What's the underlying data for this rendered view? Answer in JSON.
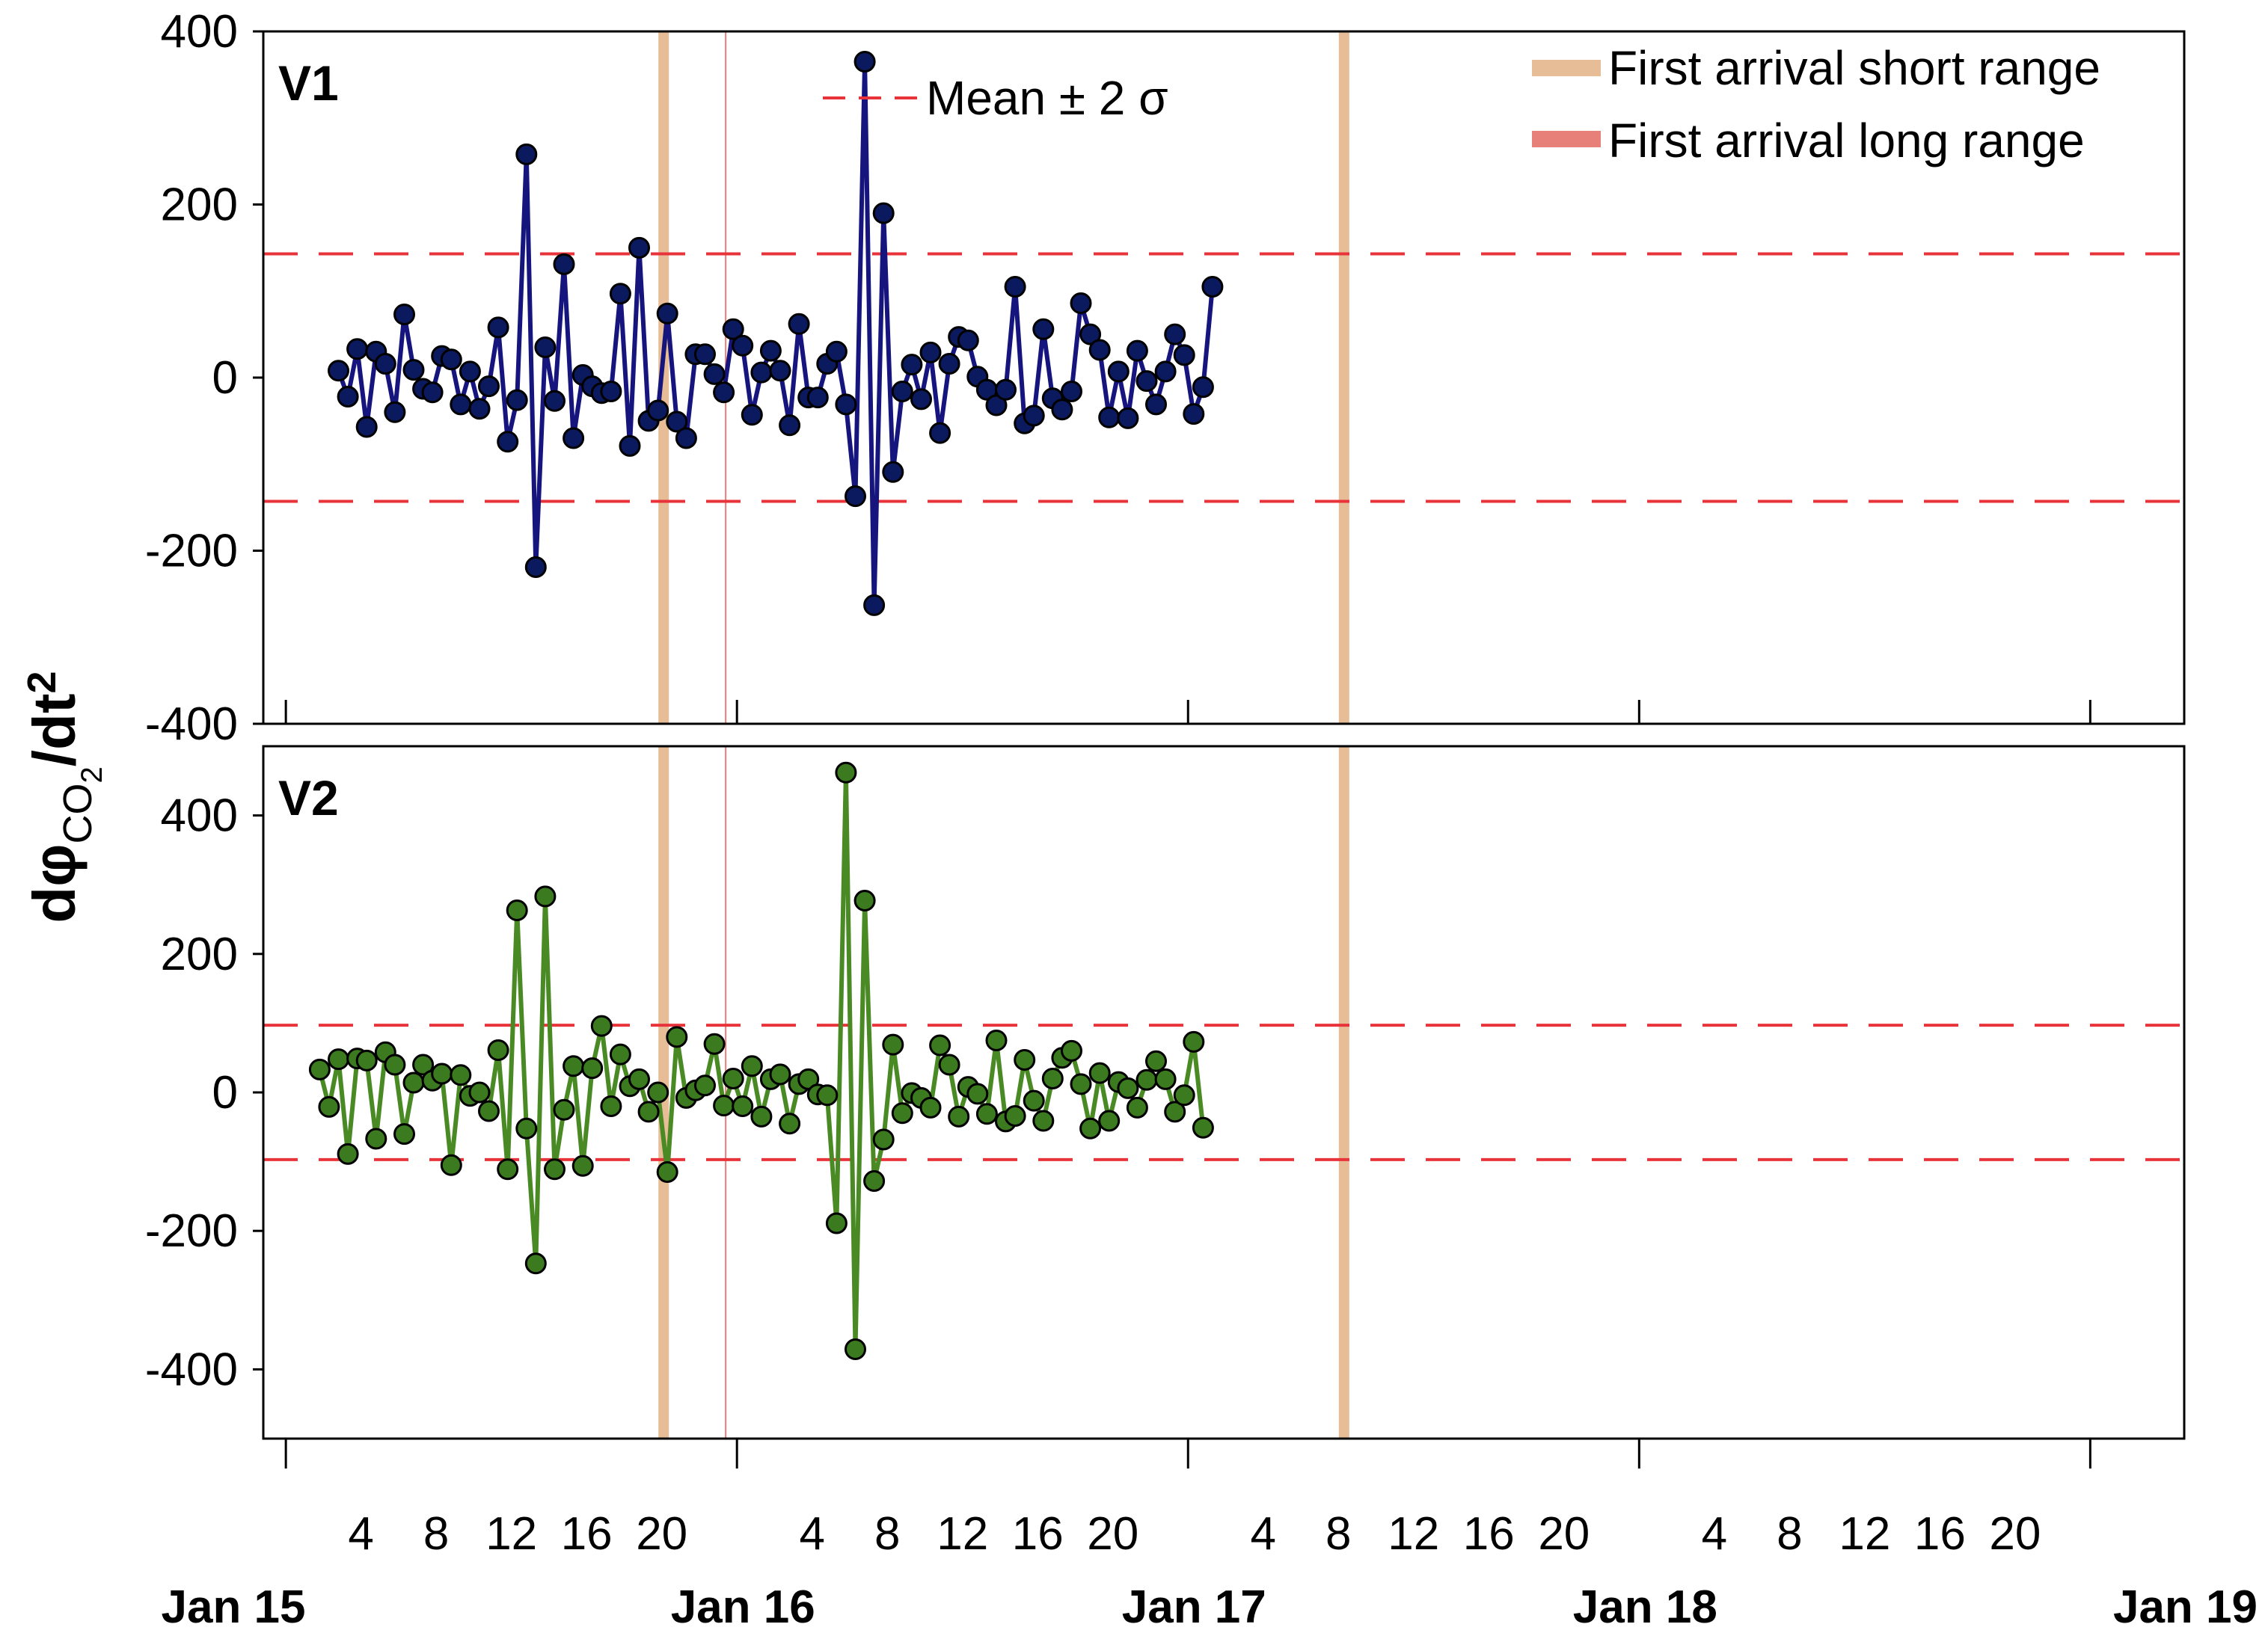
{
  "chart_data": {
    "type": "line",
    "ylabel": {
      "prefix": "dφ",
      "sub": "CO",
      "subsub": "2",
      "suffix": "/dt",
      "sup": "2"
    },
    "x_unit": "hours since Jan 15 00:00",
    "x_step_hours": 0.5,
    "xlim": [
      -1.2,
      101
    ],
    "hour_ticks": [
      {
        "x": 4,
        "label": "4"
      },
      {
        "x": 8,
        "label": "8"
      },
      {
        "x": 12,
        "label": "12"
      },
      {
        "x": 16,
        "label": "16"
      },
      {
        "x": 20,
        "label": "20"
      },
      {
        "x": 28,
        "label": "4"
      },
      {
        "x": 32,
        "label": "8"
      },
      {
        "x": 36,
        "label": "12"
      },
      {
        "x": 40,
        "label": "16"
      },
      {
        "x": 44,
        "label": "20"
      },
      {
        "x": 52,
        "label": "4"
      },
      {
        "x": 56,
        "label": "8"
      },
      {
        "x": 60,
        "label": "12"
      },
      {
        "x": 64,
        "label": "16"
      },
      {
        "x": 68,
        "label": "20"
      },
      {
        "x": 76,
        "label": "4"
      },
      {
        "x": 80,
        "label": "8"
      },
      {
        "x": 84,
        "label": "12"
      },
      {
        "x": 88,
        "label": "16"
      },
      {
        "x": 92,
        "label": "20"
      }
    ],
    "date_ticks": [
      {
        "x": 0,
        "label": "Jan 15"
      },
      {
        "x": 24,
        "label": "Jan 16"
      },
      {
        "x": 48,
        "label": "Jan 17"
      },
      {
        "x": 72,
        "label": "Jan 18"
      },
      {
        "x": 96,
        "label": "Jan 19"
      }
    ],
    "events": [
      {
        "name": "First arrival short range",
        "x": 20.1,
        "color": "#e6bd96",
        "width": 14
      },
      {
        "name": "First arrival long range",
        "x": 23.4,
        "color": "#e8807a",
        "width": 2
      },
      {
        "name": "First arrival short range",
        "x": 56.3,
        "color": "#e6bd96",
        "width": 14
      }
    ],
    "legend": {
      "mean_label": "Mean ± 2 σ",
      "short_label": "First arrival short range",
      "long_label": "First arrival long range",
      "mean_color": "#e8333a",
      "short_color": "#e6bd96",
      "long_color": "#e8807a"
    },
    "panels": [
      {
        "label": "V1",
        "ylim": [
          -400,
          400
        ],
        "yticks": [
          400,
          200,
          0,
          -200,
          -400
        ],
        "threshold": 143,
        "line_color": "#15157d",
        "marker_color": "#0b1a5e",
        "x_start": 2.8,
        "values": [
          8,
          -22,
          33,
          -57,
          30,
          16,
          -40,
          73,
          9,
          -13,
          -17,
          25,
          21,
          -31,
          7,
          -36,
          -10,
          58,
          -74,
          -26,
          258,
          -219,
          35,
          -27,
          131,
          -70,
          3,
          -10,
          -18,
          -16,
          97,
          -79,
          150,
          -50,
          -38,
          74,
          -51,
          -70,
          27,
          27,
          4,
          -17,
          56,
          37,
          -43,
          6,
          31,
          8,
          -55,
          62,
          -23,
          -23,
          16,
          30,
          -31,
          -137,
          365,
          -263,
          190,
          -109,
          -16,
          15,
          -25,
          29,
          -64,
          16,
          47,
          43,
          1,
          -14,
          -32,
          -14,
          105,
          -53,
          -44,
          56,
          -24,
          -37,
          -16,
          86,
          50,
          32,
          -46,
          7,
          -47,
          31,
          -4,
          -31,
          7,
          50,
          26,
          -42,
          -11,
          105
        ]
      },
      {
        "label": "V2",
        "ylim": [
          -500,
          500
        ],
        "yticks": [
          400,
          200,
          0,
          -200,
          -400
        ],
        "threshold": 97,
        "line_color": "#4a8a24",
        "marker_color": "#3b7a1f",
        "x_start": 1.8,
        "values": [
          33,
          -21,
          48,
          -89,
          49,
          46,
          -67,
          58,
          40,
          -60,
          14,
          40,
          17,
          27,
          -105,
          25,
          -5,
          0,
          -27,
          61,
          -111,
          263,
          -52,
          -247,
          283,
          -111,
          -25,
          38,
          -106,
          35,
          96,
          -20,
          55,
          9,
          19,
          -28,
          0,
          -115,
          80,
          -8,
          3,
          10,
          70,
          -19,
          20,
          -20,
          38,
          -35,
          19,
          26,
          -45,
          12,
          19,
          -3,
          -4,
          -189,
          462,
          -371,
          277,
          -128,
          -68,
          69,
          -30,
          -1,
          -8,
          -22,
          68,
          40,
          -35,
          8,
          -2,
          -31,
          75,
          -42,
          -34,
          47,
          -12,
          -41,
          20,
          50,
          60,
          12,
          -52,
          28,
          -41,
          15,
          6,
          -22,
          18,
          45,
          19,
          -28,
          -4,
          73,
          -51
        ]
      }
    ]
  }
}
